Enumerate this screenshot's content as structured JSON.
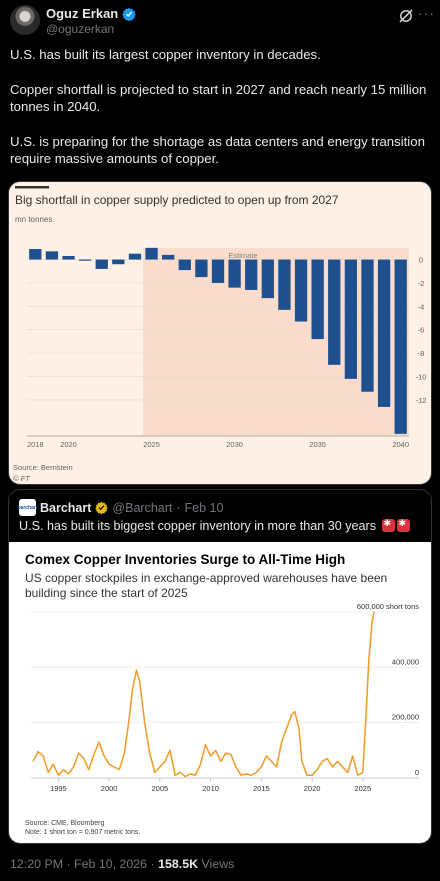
{
  "author": {
    "display_name": "Oguz Erkan",
    "handle": "@oguzerkan",
    "verified_color": "#1d9bf0"
  },
  "tweet": {
    "paragraphs": [
      "U.S. has built its largest copper inventory in decades.",
      "Copper shortfall is projected to start in 2027 and reach nearly 15 million tonnes in 2040.",
      "U.S. is preparing for the shortage as data centers and energy transition require massive amounts of copper."
    ],
    "timestamp": "12:20 PM · Feb 10, 2026 · ",
    "views_count": "158.5K",
    "views_label": " Views"
  },
  "ft_chart": {
    "title": "Big shortfall in copper supply predicted to open up from 2027",
    "unit": "mn tonnes",
    "estimate_label": "Estimate",
    "source": "Source: Bernstein",
    "brand": "© FT",
    "bar_color": "#1e4f8f",
    "estimate_shade": "#f9dccb"
  },
  "quote": {
    "display_name": "Barchart",
    "logo_text": "barchart",
    "handle": "@Barchart",
    "dot": "·",
    "date": "Feb 10",
    "text": "U.S. has built its biggest copper inventory in more than 30 years",
    "chart_title": "Comex Copper Inventories Surge to All-Time High",
    "chart_subtitle": "US copper stockpiles in exchange-approved warehouses have been building since the start of 2025",
    "source_line1": "Source: CME, Bloomberg",
    "source_line2": "Note: 1 short ton = 0.907 metric tons.",
    "line_color": "#f0a030"
  },
  "chart_data": [
    {
      "type": "bar",
      "title": "Big shortfall in copper supply predicted to open up from 2027",
      "ylabel": "mn tonnes",
      "categories": [
        "2018",
        "2019",
        "2020",
        "2021",
        "2022",
        "2023",
        "2024",
        "2025",
        "2026",
        "2027",
        "2028",
        "2029",
        "2030",
        "2031",
        "2032",
        "2033",
        "2034",
        "2035",
        "2036",
        "2037",
        "2038",
        "2039",
        "2040"
      ],
      "values": [
        0.9,
        0.7,
        0.3,
        -0.1,
        -0.8,
        -0.4,
        0.5,
        1.0,
        0.4,
        -0.9,
        -1.5,
        -2.0,
        -2.4,
        -2.6,
        -3.3,
        -4.3,
        -5.3,
        -6.8,
        -9.0,
        -10.2,
        -11.3,
        -12.6,
        -14.9
      ],
      "xticks": [
        "2018",
        "2020",
        "2025",
        "2030",
        "2035",
        "2040"
      ],
      "yticks": [
        "0",
        "-2",
        "-4",
        "-6",
        "-8",
        "-10",
        "-12"
      ],
      "ylim": [
        -15,
        1.5
      ],
      "annotations": [
        "Estimate"
      ],
      "estimate_start": "2025"
    },
    {
      "type": "line",
      "title": "Comex Copper Inventories Surge to All-Time High",
      "subtitle": "US copper stockpiles in exchange-approved warehouses have been building since the start of 2025",
      "ylabel": "600,000 short tons",
      "x": [
        1992.5,
        1993,
        1993.5,
        1994,
        1994.5,
        1995,
        1995.5,
        1996,
        1996.5,
        1997,
        1997.5,
        1998,
        1998.5,
        1999,
        1999.5,
        2000,
        2000.5,
        2001,
        2001.5,
        2002,
        2002.3,
        2002.7,
        2003,
        2003.5,
        2004,
        2004.5,
        2005,
        2005.5,
        2006,
        2006.5,
        2007,
        2007.5,
        2008,
        2008.5,
        2009,
        2009.5,
        2010,
        2010.5,
        2011,
        2011.5,
        2012,
        2012.5,
        2013,
        2013.5,
        2014,
        2014.5,
        2015,
        2015.5,
        2016,
        2016.5,
        2017,
        2017.5,
        2018,
        2018.3,
        2018.7,
        2019,
        2019.5,
        2020,
        2020.5,
        2021,
        2021.5,
        2022,
        2022.5,
        2023,
        2023.5,
        2024,
        2024.5,
        2025,
        2025.3,
        2025.6,
        2025.9,
        2026.1
      ],
      "y": [
        60000,
        95000,
        80000,
        20000,
        50000,
        10000,
        30000,
        15000,
        40000,
        90000,
        70000,
        30000,
        85000,
        130000,
        80000,
        50000,
        40000,
        30000,
        90000,
        220000,
        320000,
        390000,
        350000,
        200000,
        90000,
        20000,
        40000,
        60000,
        100000,
        10000,
        20000,
        5000,
        15000,
        10000,
        50000,
        120000,
        80000,
        100000,
        60000,
        90000,
        85000,
        40000,
        10000,
        15000,
        10000,
        20000,
        40000,
        80000,
        60000,
        40000,
        130000,
        180000,
        230000,
        240000,
        180000,
        60000,
        10000,
        10000,
        30000,
        60000,
        70000,
        40000,
        60000,
        40000,
        20000,
        80000,
        10000,
        20000,
        220000,
        430000,
        560000,
        600000
      ],
      "xticks": [
        "1995",
        "2000",
        "2005",
        "2010",
        "2015",
        "2020",
        "2025"
      ],
      "yticks": [
        "0",
        "200,000",
        "400,000",
        "600,000 short tons"
      ],
      "ylim": [
        0,
        600000
      ],
      "grid": true
    }
  ]
}
